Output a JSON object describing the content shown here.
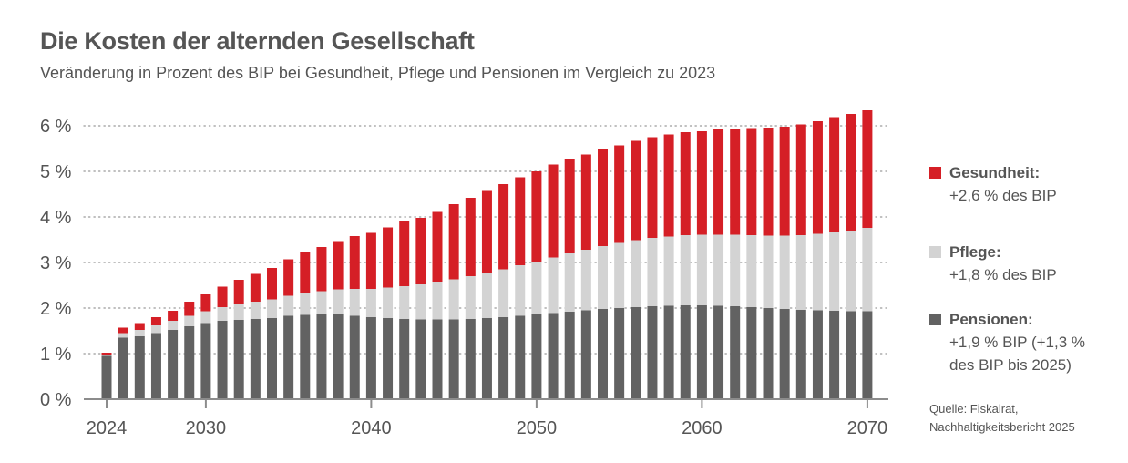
{
  "header": {
    "title": "Die Kosten der alternden Gesellschaft",
    "subtitle": "Veränderung in Prozent des BIP bei Gesundheit, Pflege und Pensionen im Vergleich zu 2023"
  },
  "legend": {
    "gesundheit": {
      "label": "Gesundheit:",
      "desc": "+2,6 % des BIP",
      "color": "#d51f26"
    },
    "pflege": {
      "label": "Pflege:",
      "desc": "+1,8 % des BIP",
      "color": "#d3d3d3"
    },
    "pensionen": {
      "label": "Pensionen:",
      "desc_line1": "+1,9 % BIP (+1,3 %",
      "desc_line2": "des BIP bis 2025)",
      "color": "#626262"
    }
  },
  "source": {
    "line1": "Quelle: Fiskalrat,",
    "line2": "Nachhaltigkeitsbericht 2025"
  },
  "chart_data": {
    "type": "bar",
    "stacked": true,
    "title": "Die Kosten der alternden Gesellschaft",
    "xlabel": "",
    "ylabel": "",
    "ylim": [
      0,
      6.3
    ],
    "yticks": [
      0,
      1,
      2,
      3,
      4,
      5,
      6
    ],
    "ytick_labels": [
      "0 %",
      "1 %",
      "2 %",
      "3 %",
      "4 %",
      "5 %",
      "6 %"
    ],
    "xticks": [
      2024,
      2030,
      2040,
      2050,
      2060,
      2070
    ],
    "xtick_labels": [
      "2024",
      "2030",
      "2040",
      "2050",
      "2060",
      "2070"
    ],
    "grid": "horizontal dotted",
    "legend_position": "right",
    "categories": [
      2024,
      2025,
      2026,
      2027,
      2028,
      2029,
      2030,
      2031,
      2032,
      2033,
      2034,
      2035,
      2036,
      2037,
      2038,
      2039,
      2040,
      2041,
      2042,
      2043,
      2044,
      2045,
      2046,
      2047,
      2048,
      2049,
      2050,
      2051,
      2052,
      2053,
      2054,
      2055,
      2056,
      2057,
      2058,
      2059,
      2060,
      2061,
      2062,
      2063,
      2064,
      2065,
      2066,
      2067,
      2068,
      2069,
      2070
    ],
    "series": [
      {
        "name": "Pensionen",
        "color": "#626262",
        "values": [
          0.95,
          1.35,
          1.38,
          1.45,
          1.52,
          1.6,
          1.67,
          1.72,
          1.74,
          1.76,
          1.78,
          1.83,
          1.85,
          1.86,
          1.86,
          1.83,
          1.8,
          1.78,
          1.76,
          1.75,
          1.75,
          1.75,
          1.76,
          1.78,
          1.8,
          1.83,
          1.86,
          1.89,
          1.92,
          1.95,
          1.98,
          2.0,
          2.02,
          2.04,
          2.05,
          2.06,
          2.06,
          2.05,
          2.04,
          2.02,
          2.0,
          1.98,
          1.96,
          1.95,
          1.94,
          1.93,
          1.93
        ]
      },
      {
        "name": "Pflege",
        "color": "#d3d3d3",
        "values": [
          0.02,
          0.1,
          0.14,
          0.17,
          0.2,
          0.23,
          0.26,
          0.3,
          0.34,
          0.38,
          0.41,
          0.44,
          0.48,
          0.51,
          0.55,
          0.59,
          0.62,
          0.67,
          0.72,
          0.77,
          0.83,
          0.88,
          0.94,
          1.0,
          1.05,
          1.11,
          1.16,
          1.22,
          1.28,
          1.33,
          1.38,
          1.43,
          1.47,
          1.5,
          1.52,
          1.54,
          1.55,
          1.56,
          1.57,
          1.58,
          1.59,
          1.61,
          1.64,
          1.68,
          1.72,
          1.77,
          1.83
        ]
      },
      {
        "name": "Gesundheit",
        "color": "#d51f26",
        "values": [
          0.05,
          0.12,
          0.15,
          0.18,
          0.22,
          0.31,
          0.37,
          0.45,
          0.54,
          0.61,
          0.69,
          0.8,
          0.9,
          0.97,
          1.06,
          1.16,
          1.23,
          1.32,
          1.42,
          1.46,
          1.53,
          1.65,
          1.72,
          1.79,
          1.87,
          1.93,
          1.98,
          2.04,
          2.07,
          2.09,
          2.13,
          2.14,
          2.18,
          2.21,
          2.24,
          2.26,
          2.27,
          2.32,
          2.33,
          2.35,
          2.37,
          2.39,
          2.43,
          2.47,
          2.53,
          2.56,
          2.58
        ]
      }
    ]
  }
}
